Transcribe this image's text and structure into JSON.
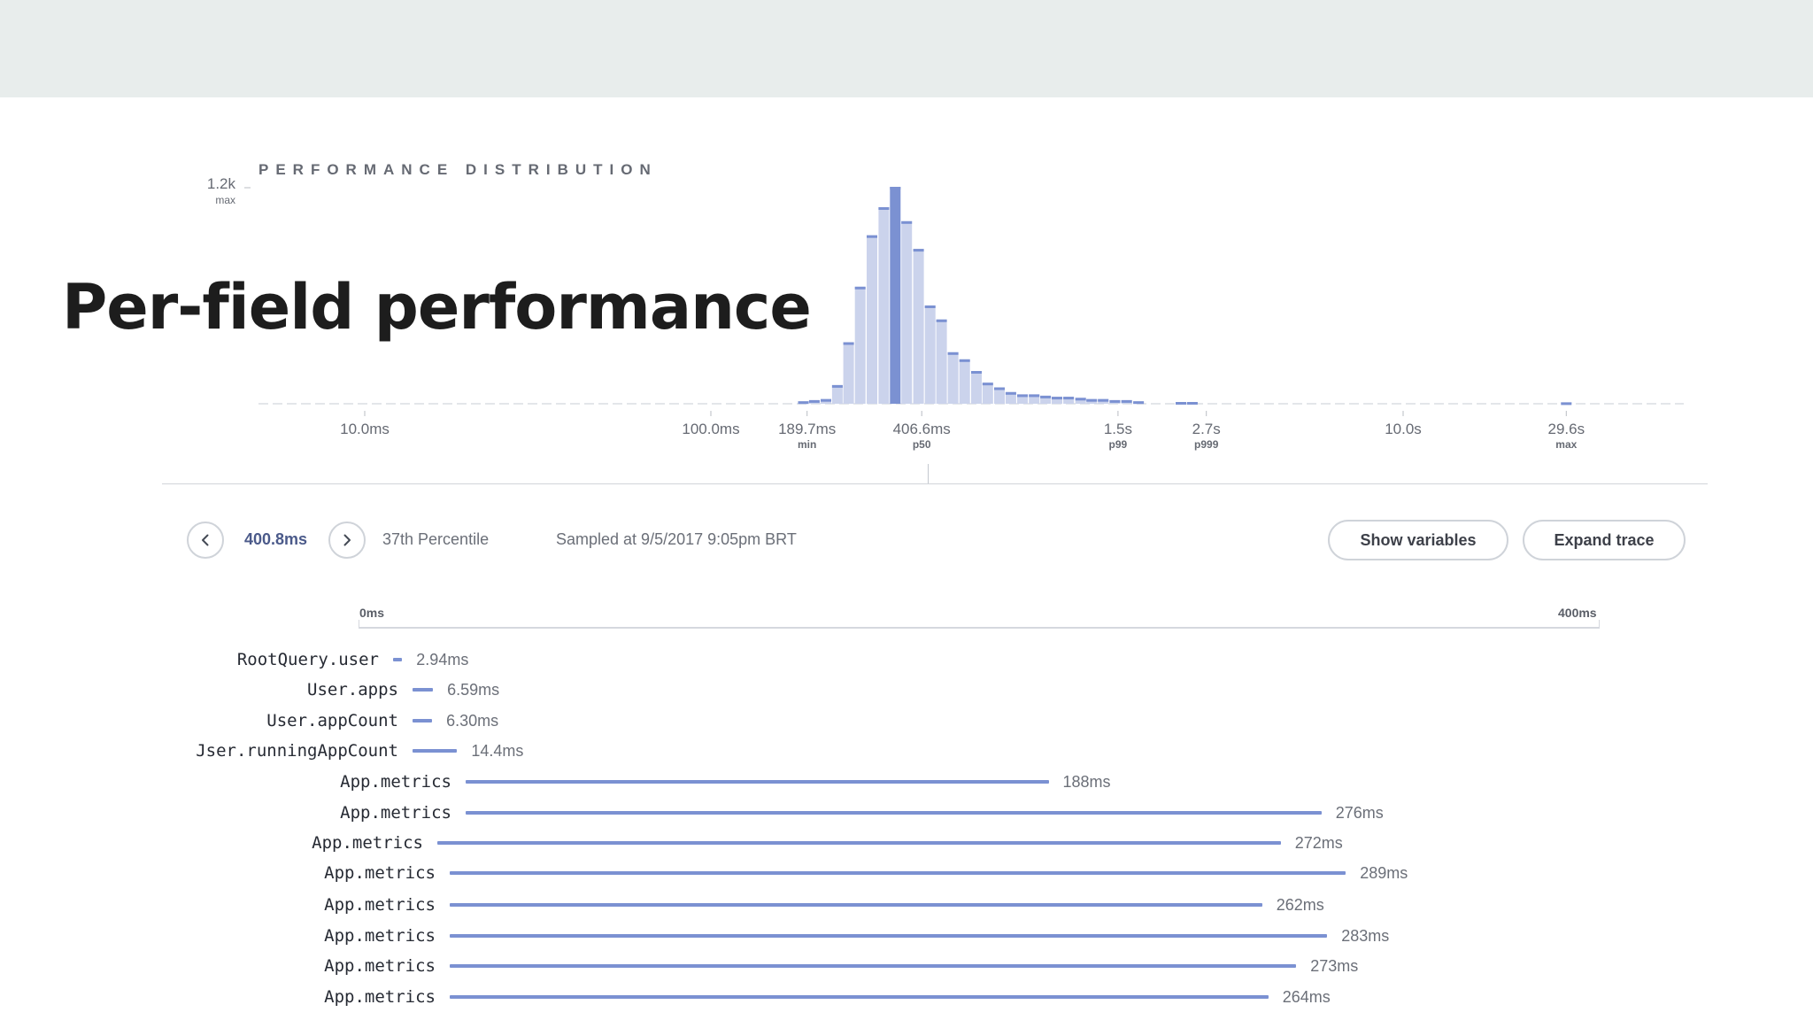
{
  "slide": {
    "title": "Per-field performance"
  },
  "chart_data": {
    "type": "bar",
    "title": "PERFORMANCE DISTRIBUTION",
    "x_scale": "log",
    "y_max_label": "1.2k",
    "y_max_sublabel": "max",
    "ylim": [
      0,
      1200
    ],
    "x_ticks": [
      {
        "value": 0.01,
        "label": "10.0ms",
        "sublabel": ""
      },
      {
        "value": 0.1,
        "label": "100.0ms",
        "sublabel": ""
      },
      {
        "value": 0.1897,
        "label": "189.7ms",
        "sublabel": "min"
      },
      {
        "value": 0.4066,
        "label": "406.6ms",
        "sublabel": "p50"
      },
      {
        "value": 1.5,
        "label": "1.5s",
        "sublabel": "p99"
      },
      {
        "value": 2.7,
        "label": "2.7s",
        "sublabel": "p999"
      },
      {
        "value": 10.0,
        "label": "10.0s",
        "sublabel": ""
      },
      {
        "value": 29.6,
        "label": "29.6s",
        "sublabel": "max"
      }
    ],
    "bins": [
      {
        "x": 0.185,
        "count": 14
      },
      {
        "x": 0.199,
        "count": 20
      },
      {
        "x": 0.215,
        "count": 26
      },
      {
        "x": 0.232,
        "count": 104
      },
      {
        "x": 0.25,
        "count": 342
      },
      {
        "x": 0.27,
        "count": 650
      },
      {
        "x": 0.292,
        "count": 936
      },
      {
        "x": 0.316,
        "count": 1092
      },
      {
        "x": 0.341,
        "count": 1205
      },
      {
        "x": 0.368,
        "count": 1014
      },
      {
        "x": 0.398,
        "count": 860
      },
      {
        "x": 0.43,
        "count": 546
      },
      {
        "x": 0.464,
        "count": 468
      },
      {
        "x": 0.501,
        "count": 286
      },
      {
        "x": 0.541,
        "count": 247
      },
      {
        "x": 0.585,
        "count": 182
      },
      {
        "x": 0.631,
        "count": 117
      },
      {
        "x": 0.682,
        "count": 91
      },
      {
        "x": 0.736,
        "count": 65
      },
      {
        "x": 0.795,
        "count": 52
      },
      {
        "x": 0.859,
        "count": 52
      },
      {
        "x": 0.927,
        "count": 45
      },
      {
        "x": 1.0,
        "count": 39
      },
      {
        "x": 1.08,
        "count": 39
      },
      {
        "x": 1.17,
        "count": 33
      },
      {
        "x": 1.26,
        "count": 26
      },
      {
        "x": 1.36,
        "count": 26
      },
      {
        "x": 1.47,
        "count": 20
      },
      {
        "x": 1.59,
        "count": 20
      },
      {
        "x": 1.72,
        "count": 14
      },
      {
        "x": 2.28,
        "count": 10
      },
      {
        "x": 2.46,
        "count": 10
      },
      {
        "x": 29.6,
        "count": 8
      }
    ]
  },
  "controls": {
    "sample_value": "400.8ms",
    "percentile": "37th Percentile",
    "sampled_at": "Sampled at 9/5/2017 9:05pm BRT",
    "show_variables_label": "Show variables",
    "expand_trace_label": "Expand trace",
    "prev_icon": "chevron-left-icon",
    "next_icon": "chevron-right-icon"
  },
  "trace": {
    "axis_start_label": "0ms",
    "axis_end_label": "400ms",
    "axis_max_ms": 400,
    "rows": [
      {
        "name": "RootQuery.user",
        "start_ms": 2,
        "duration_ms": 2.94,
        "duration_label": "2.94ms",
        "depth": 0
      },
      {
        "name": "User.apps",
        "start_ms": 5,
        "duration_ms": 6.59,
        "duration_label": "6.59ms",
        "depth": 1
      },
      {
        "name": "User.appCount",
        "start_ms": 5,
        "duration_ms": 6.3,
        "duration_label": "6.30ms",
        "depth": 1
      },
      {
        "name": "Jser.runningAppCount",
        "start_ms": 5,
        "duration_ms": 14.4,
        "duration_label": "14.4ms",
        "depth": 1
      },
      {
        "name": "App.metrics",
        "start_ms": 7,
        "duration_ms": 188,
        "duration_label": "188ms",
        "depth": 2
      },
      {
        "name": "App.metrics",
        "start_ms": 7,
        "duration_ms": 276,
        "duration_label": "276ms",
        "depth": 2
      },
      {
        "name": "App.metrics",
        "start_ms": 7.5,
        "duration_ms": 272,
        "duration_label": "272ms",
        "depth": 2
      },
      {
        "name": "App.metrics",
        "start_ms": 10,
        "duration_ms": 289,
        "duration_label": "289ms",
        "depth": 2
      },
      {
        "name": "App.metrics",
        "start_ms": 10,
        "duration_ms": 262,
        "duration_label": "262ms",
        "depth": 2
      },
      {
        "name": "App.metrics",
        "start_ms": 10.5,
        "duration_ms": 283,
        "duration_label": "283ms",
        "depth": 2
      },
      {
        "name": "App.metrics",
        "start_ms": 10.5,
        "duration_ms": 273,
        "duration_label": "273ms",
        "depth": 2
      },
      {
        "name": "App.metrics",
        "start_ms": 10.5,
        "duration_ms": 264,
        "duration_label": "264ms",
        "depth": 2
      }
    ]
  },
  "colors": {
    "bar_fill": "#cbd3ec",
    "bar_cap": "#7b91d2",
    "highlight_bar": "#7b91d2",
    "trace_bar": "#7b91d2",
    "top_band": "#e8edec"
  }
}
